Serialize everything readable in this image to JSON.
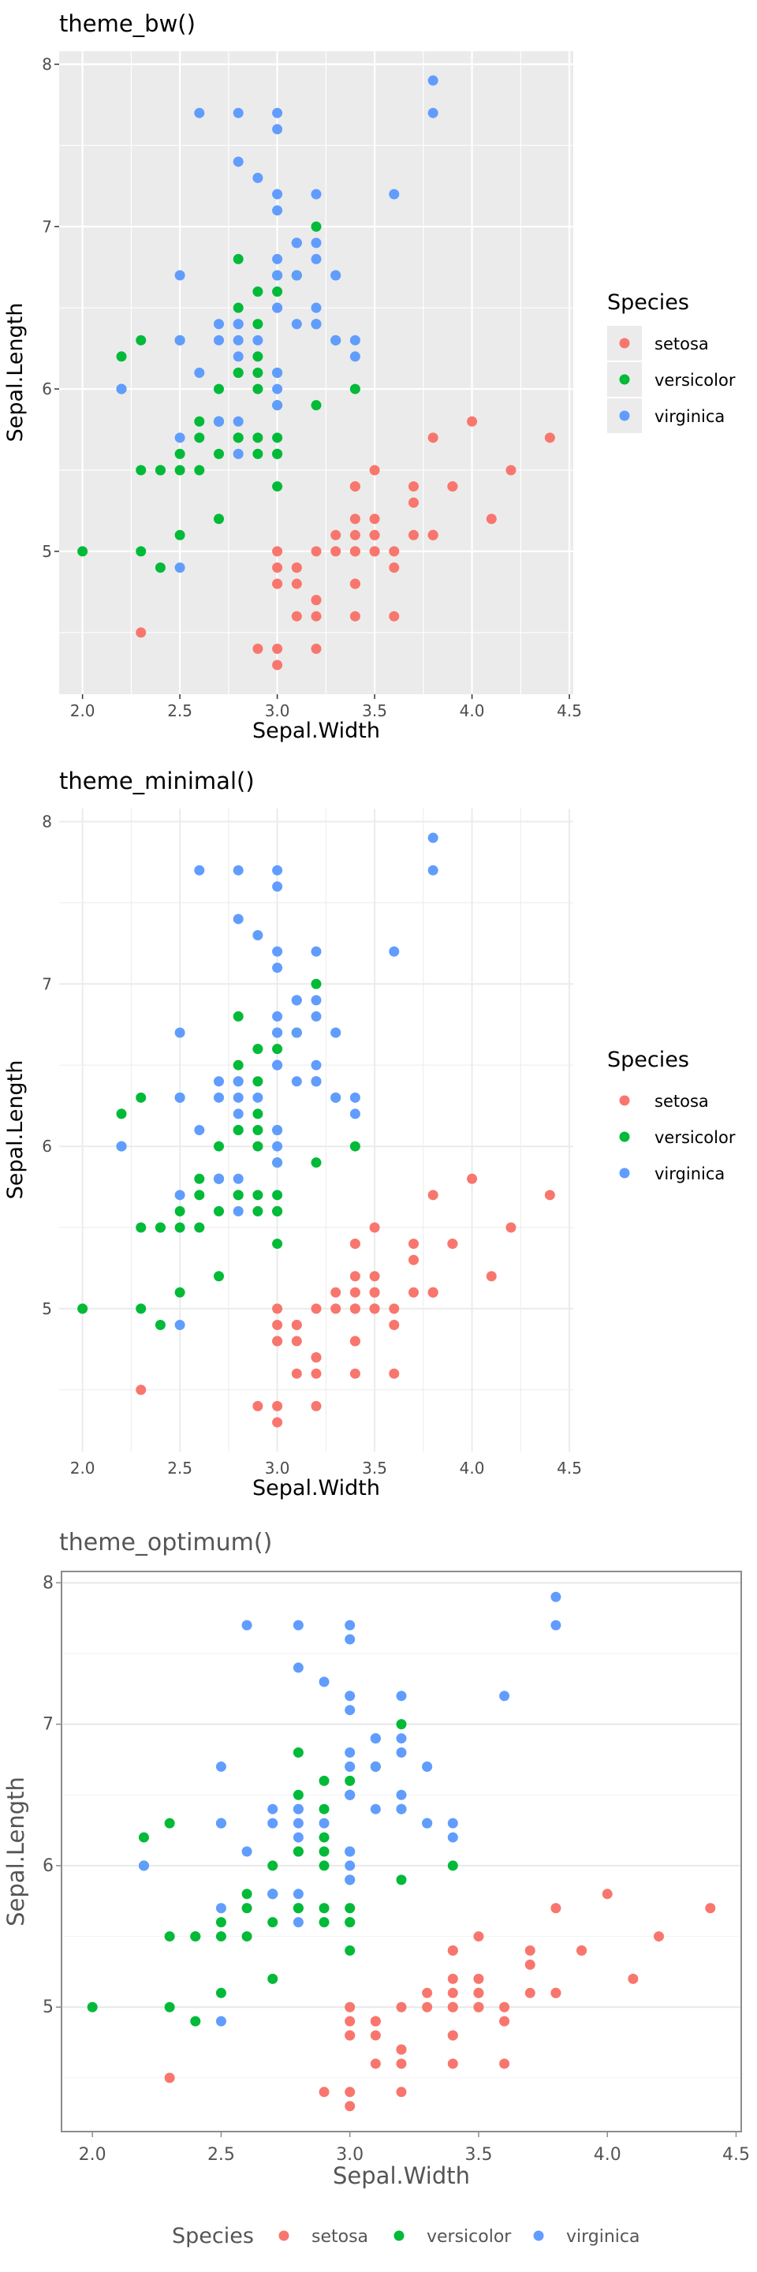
{
  "colors": {
    "setosa": "#F8766D",
    "versicolor": "#00BA38",
    "virginica": "#619CFF",
    "panel_bw": "#EBEBEB",
    "grid_bw": "#FFFFFF",
    "grid_light": "#EBEBEB",
    "text_dark": "#1A1A1A",
    "text_axis": "#4D4D4D",
    "text_optimum": "#555555",
    "border_optimum": "#8C8C8C"
  },
  "panels": [
    {
      "title": "theme_bw()",
      "xlabel": "Sepal.Width",
      "ylabel": "Sepal.Length",
      "legend": {
        "title": "Species",
        "position": "right"
      }
    },
    {
      "title": "theme_minimal()",
      "xlabel": "Sepal.Width",
      "ylabel": "Sepal.Length",
      "legend": {
        "title": "Species",
        "position": "right"
      }
    },
    {
      "title": "theme_optimum()",
      "xlabel": "Sepal.Width",
      "ylabel": "Sepal.Length",
      "legend": {
        "title": "Species",
        "position": "bottom"
      }
    }
  ],
  "chart_data": {
    "type": "scatter",
    "xlim": [
      1.88,
      4.52
    ],
    "ylim": [
      4.12,
      8.08
    ],
    "x_ticks": [
      2.0,
      2.5,
      3.0,
      3.5,
      4.0,
      4.5
    ],
    "x_tick_labels": [
      "2.0",
      "2.5",
      "3.0",
      "3.5",
      "4.0",
      "4.5"
    ],
    "y_ticks": [
      5,
      6,
      7,
      8
    ],
    "y_tick_labels": [
      "5",
      "6",
      "7",
      "8"
    ],
    "grid": true,
    "series": [
      {
        "name": "setosa",
        "points": [
          [
            3.5,
            5.1
          ],
          [
            3.0,
            4.9
          ],
          [
            3.2,
            4.7
          ],
          [
            3.1,
            4.6
          ],
          [
            3.6,
            5.0
          ],
          [
            3.9,
            5.4
          ],
          [
            3.4,
            4.6
          ],
          [
            3.4,
            5.0
          ],
          [
            2.9,
            4.4
          ],
          [
            3.1,
            4.9
          ],
          [
            3.7,
            5.4
          ],
          [
            3.4,
            4.8
          ],
          [
            3.0,
            4.8
          ],
          [
            3.0,
            4.3
          ],
          [
            4.0,
            5.8
          ],
          [
            4.4,
            5.7
          ],
          [
            3.9,
            5.4
          ],
          [
            3.5,
            5.1
          ],
          [
            3.8,
            5.7
          ],
          [
            3.8,
            5.1
          ],
          [
            3.4,
            5.4
          ],
          [
            3.7,
            5.1
          ],
          [
            3.6,
            4.6
          ],
          [
            3.3,
            5.1
          ],
          [
            3.4,
            4.8
          ],
          [
            3.0,
            5.0
          ],
          [
            3.4,
            5.0
          ],
          [
            3.5,
            5.2
          ],
          [
            3.4,
            5.2
          ],
          [
            3.2,
            4.7
          ],
          [
            3.1,
            4.8
          ],
          [
            3.4,
            5.4
          ],
          [
            4.1,
            5.2
          ],
          [
            4.2,
            5.5
          ],
          [
            3.1,
            4.9
          ],
          [
            3.2,
            5.0
          ],
          [
            3.5,
            5.5
          ],
          [
            3.6,
            4.9
          ],
          [
            3.0,
            4.4
          ],
          [
            3.4,
            5.1
          ],
          [
            3.5,
            5.0
          ],
          [
            2.3,
            4.5
          ],
          [
            3.2,
            4.4
          ],
          [
            3.5,
            5.0
          ],
          [
            3.8,
            5.1
          ],
          [
            3.0,
            4.8
          ],
          [
            3.8,
            5.1
          ],
          [
            3.2,
            4.6
          ],
          [
            3.7,
            5.3
          ],
          [
            3.3,
            5.0
          ]
        ]
      },
      {
        "name": "versicolor",
        "points": [
          [
            3.2,
            7.0
          ],
          [
            3.2,
            6.4
          ],
          [
            3.1,
            6.9
          ],
          [
            2.3,
            5.5
          ],
          [
            2.8,
            6.5
          ],
          [
            2.8,
            5.7
          ],
          [
            3.3,
            6.3
          ],
          [
            2.4,
            4.9
          ],
          [
            2.9,
            6.6
          ],
          [
            2.7,
            5.2
          ],
          [
            2.0,
            5.0
          ],
          [
            3.0,
            5.9
          ],
          [
            2.2,
            6.0
          ],
          [
            2.9,
            6.1
          ],
          [
            2.9,
            5.6
          ],
          [
            3.1,
            6.7
          ],
          [
            3.0,
            5.6
          ],
          [
            2.7,
            5.8
          ],
          [
            2.2,
            6.2
          ],
          [
            2.5,
            5.6
          ],
          [
            3.2,
            5.9
          ],
          [
            2.8,
            6.1
          ],
          [
            2.5,
            6.3
          ],
          [
            2.8,
            6.1
          ],
          [
            2.9,
            6.4
          ],
          [
            3.0,
            6.6
          ],
          [
            2.8,
            6.8
          ],
          [
            3.0,
            6.7
          ],
          [
            2.9,
            6.0
          ],
          [
            2.6,
            5.7
          ],
          [
            2.4,
            5.5
          ],
          [
            2.4,
            5.5
          ],
          [
            2.7,
            5.8
          ],
          [
            2.7,
            6.0
          ],
          [
            3.0,
            5.4
          ],
          [
            3.4,
            6.0
          ],
          [
            3.1,
            6.7
          ],
          [
            2.3,
            6.3
          ],
          [
            3.0,
            5.6
          ],
          [
            2.5,
            5.5
          ],
          [
            2.6,
            5.5
          ],
          [
            3.0,
            6.1
          ],
          [
            2.6,
            5.8
          ],
          [
            2.3,
            5.0
          ],
          [
            2.7,
            5.6
          ],
          [
            3.0,
            5.7
          ],
          [
            2.9,
            5.7
          ],
          [
            2.9,
            6.2
          ],
          [
            2.5,
            5.1
          ],
          [
            2.8,
            5.7
          ]
        ]
      },
      {
        "name": "virginica",
        "points": [
          [
            3.3,
            6.3
          ],
          [
            2.7,
            5.8
          ],
          [
            3.0,
            7.1
          ],
          [
            2.9,
            6.3
          ],
          [
            3.0,
            6.5
          ],
          [
            3.0,
            7.6
          ],
          [
            2.5,
            4.9
          ],
          [
            2.9,
            7.3
          ],
          [
            2.5,
            6.7
          ],
          [
            3.6,
            7.2
          ],
          [
            3.2,
            6.5
          ],
          [
            2.7,
            6.4
          ],
          [
            3.0,
            6.8
          ],
          [
            2.5,
            5.7
          ],
          [
            2.8,
            5.8
          ],
          [
            3.2,
            6.4
          ],
          [
            3.0,
            6.5
          ],
          [
            3.8,
            7.7
          ],
          [
            2.6,
            7.7
          ],
          [
            2.2,
            6.0
          ],
          [
            3.2,
            6.9
          ],
          [
            2.8,
            5.6
          ],
          [
            2.8,
            7.7
          ],
          [
            2.7,
            6.3
          ],
          [
            3.3,
            6.7
          ],
          [
            3.2,
            7.2
          ],
          [
            2.8,
            6.2
          ],
          [
            3.0,
            6.1
          ],
          [
            2.8,
            6.4
          ],
          [
            3.0,
            7.2
          ],
          [
            2.8,
            7.4
          ],
          [
            3.8,
            7.9
          ],
          [
            2.8,
            6.4
          ],
          [
            2.8,
            6.3
          ],
          [
            2.6,
            6.1
          ],
          [
            3.0,
            7.7
          ],
          [
            3.4,
            6.3
          ],
          [
            3.1,
            6.4
          ],
          [
            3.0,
            6.0
          ],
          [
            3.1,
            6.9
          ],
          [
            3.1,
            6.7
          ],
          [
            3.1,
            6.9
          ],
          [
            2.7,
            5.8
          ],
          [
            3.2,
            6.8
          ],
          [
            3.3,
            6.7
          ],
          [
            3.0,
            6.7
          ],
          [
            2.5,
            6.3
          ],
          [
            3.0,
            6.5
          ],
          [
            3.4,
            6.2
          ],
          [
            3.0,
            5.9
          ]
        ]
      }
    ]
  }
}
